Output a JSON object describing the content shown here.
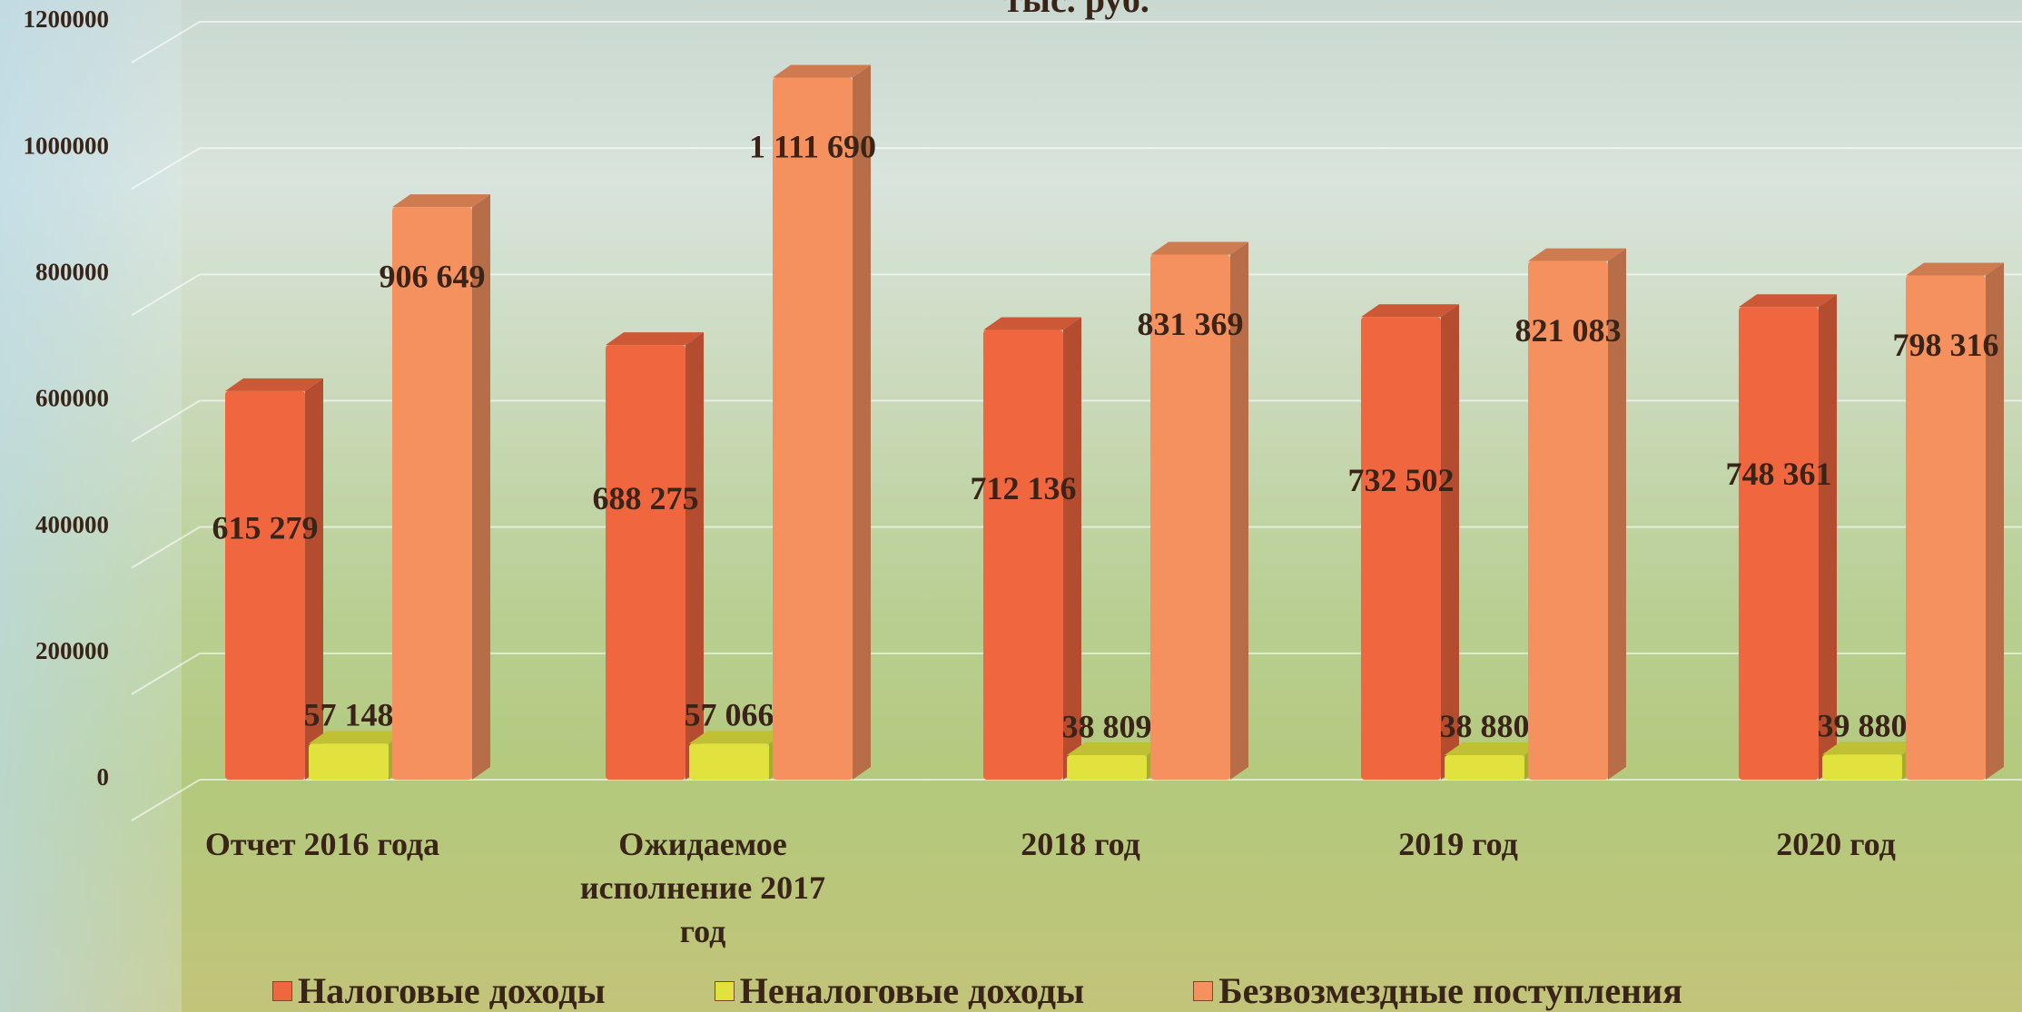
{
  "chart_data": {
    "type": "bar",
    "title": "тыс. руб.",
    "categories": [
      "Отчет 2016 года",
      "Ожидаемое исполнение  2017 год",
      "2018 год",
      "2019 год",
      "2020 год"
    ],
    "series": [
      {
        "name": "Налоговые доходы",
        "color": "#f0673f",
        "values": [
          615279,
          688275,
          712136,
          732502,
          748361
        ],
        "value_labels": [
          "615 279",
          "688 275",
          "712 136",
          "732 502",
          "748 361"
        ]
      },
      {
        "name": "Неналоговые доходы",
        "color": "#e2e23e",
        "values": [
          57148,
          57066,
          38809,
          38880,
          39880
        ],
        "value_labels": [
          "57 148",
          "57 066",
          "38 809",
          "38 880",
          "39 880"
        ]
      },
      {
        "name": "Безвозмездные поступления",
        "color": "#f4915e",
        "values": [
          906649,
          1111690,
          831369,
          821083,
          798316
        ],
        "value_labels": [
          "906 649",
          "1 111 690",
          "831 369",
          "821 083",
          "798 316"
        ]
      }
    ],
    "ylim": [
      0,
      1200000
    ],
    "yticks": [
      0,
      200000,
      400000,
      600000,
      800000,
      1000000,
      1200000
    ],
    "grid": true,
    "legend": "bottom"
  }
}
